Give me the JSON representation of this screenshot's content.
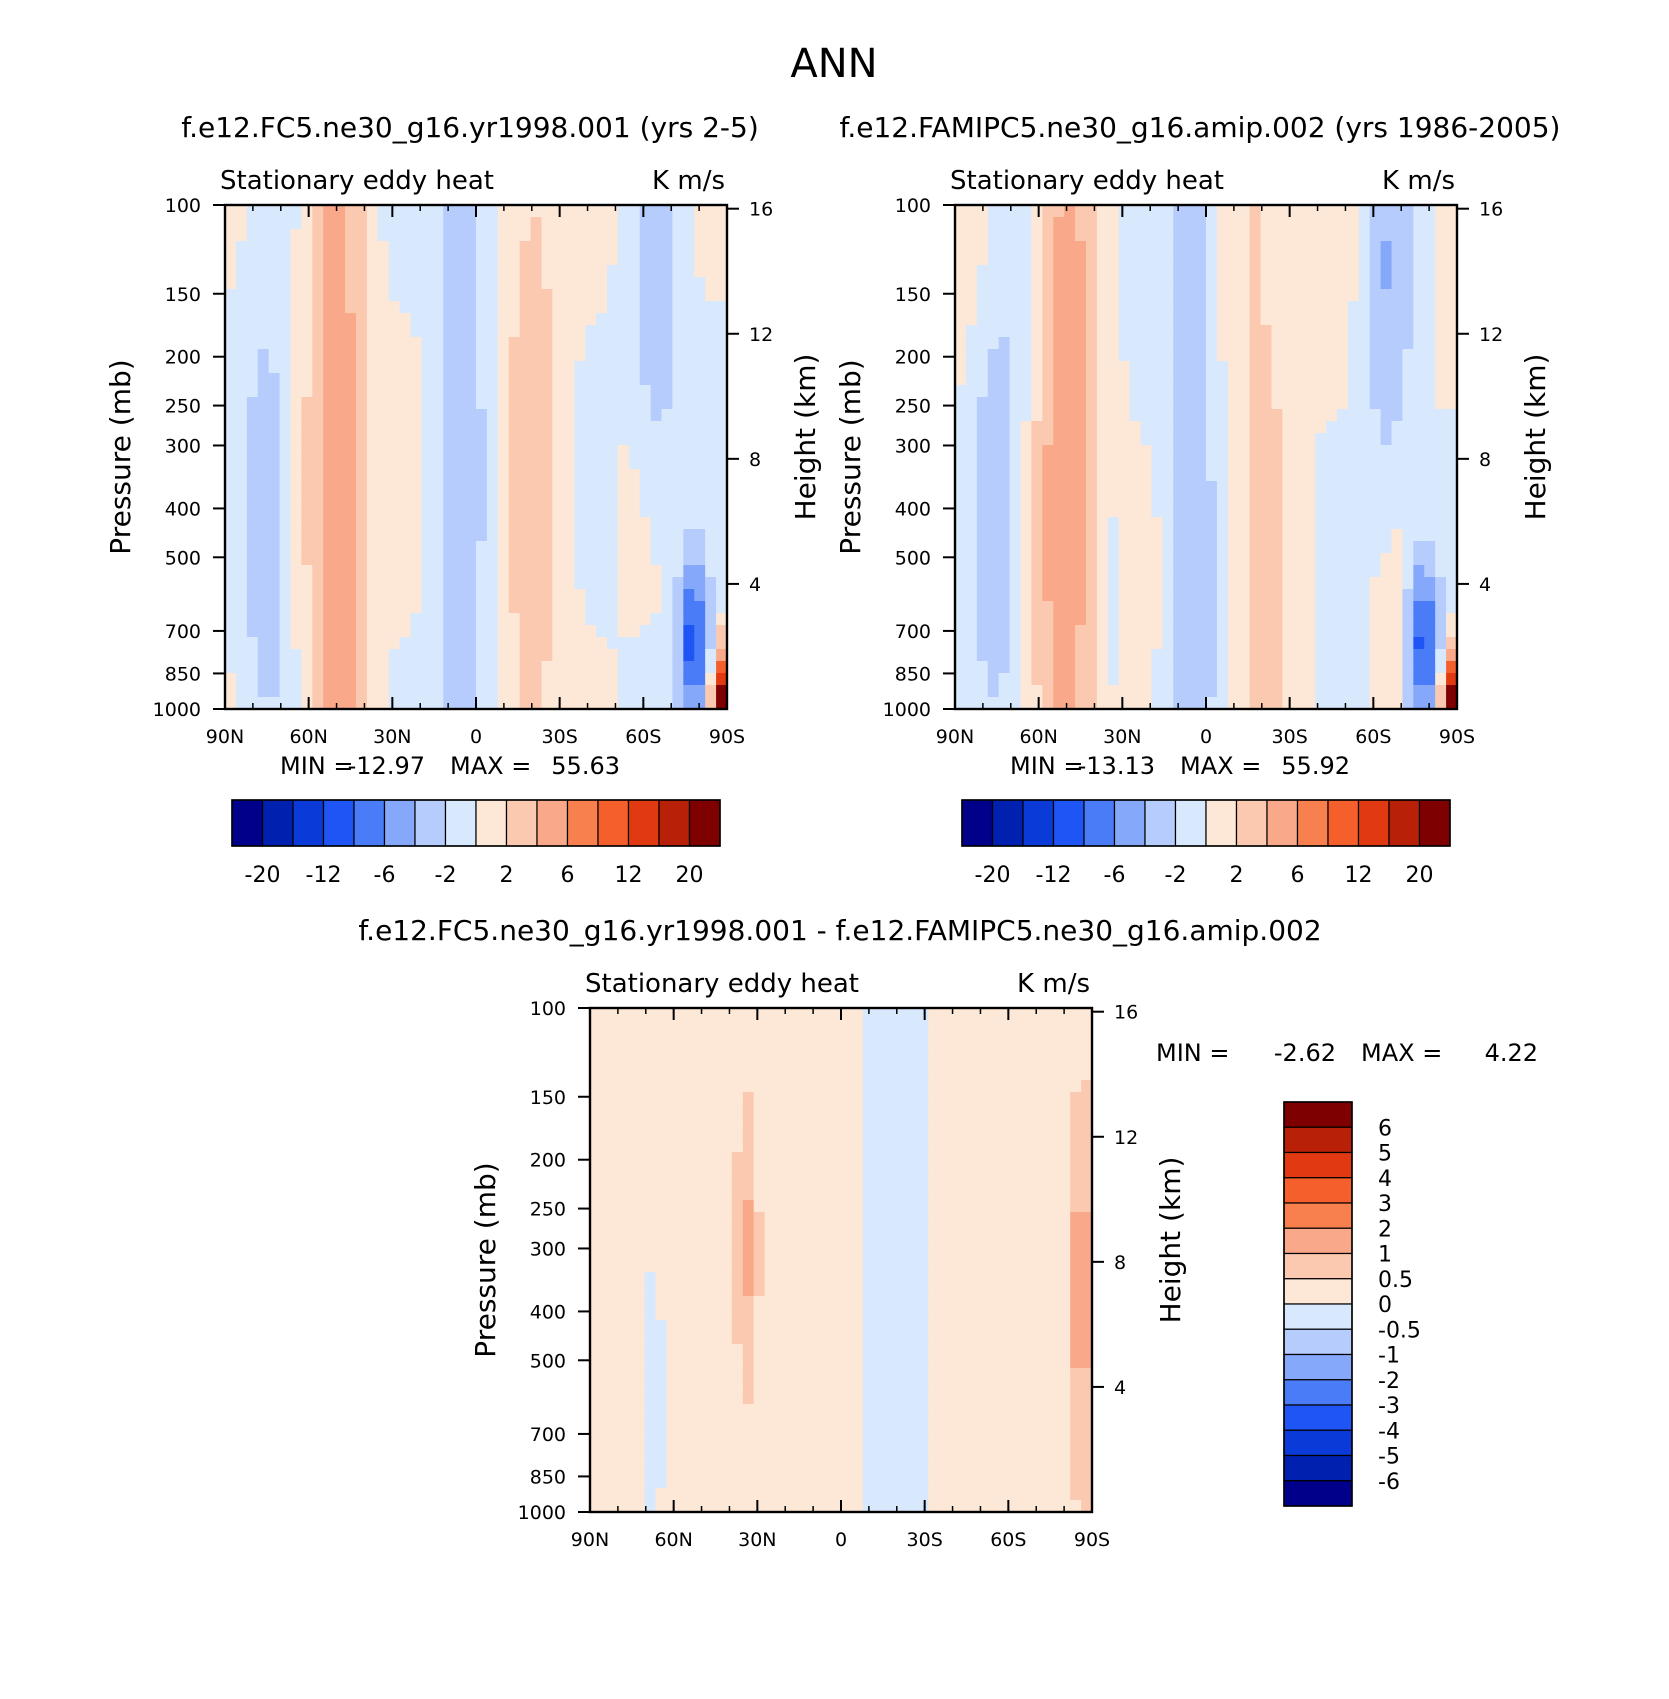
{
  "page_title": "ANN",
  "colors": {
    "blue_7": "#00008b",
    "blue_6": "#0020b0",
    "blue_5": "#0a3ad8",
    "blue_4": "#1f55f5",
    "blue_3": "#4a7cf8",
    "blue_2": "#86a8fb",
    "blue_1": "#b5ccfd",
    "blue_0": "#d9e9fd",
    "red_0": "#fde8d7",
    "red_1": "#fbc9b0",
    "red_2": "#f9a98a",
    "red_3": "#f8804f",
    "red_4": "#f45f2c",
    "red_5": "#e13a12",
    "red_6": "#b82008",
    "red_7": "#7f0000"
  },
  "chart_data": [
    {
      "type": "heatmap",
      "panel": "top-left",
      "title": "f.e12.FC5.ne30_g16.yr1998.001 (yrs 2-5)",
      "left_label": "Stationary eddy heat",
      "right_label": "K m/s",
      "ylabel": "Pressure (mb)",
      "y2label": "Height (km)",
      "xlabel": "",
      "xlim": [
        90,
        -90
      ],
      "x_ticks": [
        "90N",
        "60N",
        "30N",
        "0",
        "30S",
        "60S",
        "90S"
      ],
      "pressure_ticks": [
        "100",
        "150",
        "200",
        "250",
        "300",
        "400",
        "500",
        "700",
        "850",
        "1000"
      ],
      "height_ticks": [
        "16",
        "12",
        "8",
        "4"
      ],
      "min_label": "MIN =",
      "min_value": "-12.97",
      "max_label": "MAX =",
      "max_value": "55.63",
      "colorbar": {
        "orientation": "horizontal",
        "labels": [
          "-20",
          "-12",
          "-6",
          "-2",
          "2",
          "6",
          "12",
          "20"
        ]
      }
    },
    {
      "type": "heatmap",
      "panel": "top-right",
      "title": "f.e12.FAMIPC5.ne30_g16.amip.002 (yrs 1986-2005)",
      "left_label": "Stationary eddy heat",
      "right_label": "K m/s",
      "ylabel": "Pressure (mb)",
      "y2label": "Height (km)",
      "xlabel": "",
      "xlim": [
        90,
        -90
      ],
      "x_ticks": [
        "90N",
        "60N",
        "30N",
        "0",
        "30S",
        "60S",
        "90S"
      ],
      "pressure_ticks": [
        "100",
        "150",
        "200",
        "250",
        "300",
        "400",
        "500",
        "700",
        "850",
        "1000"
      ],
      "height_ticks": [
        "16",
        "12",
        "8",
        "4"
      ],
      "min_label": "MIN =",
      "min_value": "-13.13",
      "max_label": "MAX =",
      "max_value": "55.92",
      "colorbar": {
        "orientation": "horizontal",
        "labels": [
          "-20",
          "-12",
          "-6",
          "-2",
          "2",
          "6",
          "12",
          "20"
        ]
      }
    },
    {
      "type": "heatmap",
      "panel": "bottom",
      "title": "f.e12.FC5.ne30_g16.yr1998.001 - f.e12.FAMIPC5.ne30_g16.amip.002",
      "left_label": "Stationary eddy heat",
      "right_label": "K m/s",
      "ylabel": "Pressure (mb)",
      "y2label": "Height (km)",
      "xlabel": "",
      "xlim": [
        90,
        -90
      ],
      "x_ticks": [
        "90N",
        "60N",
        "30N",
        "0",
        "30S",
        "60S",
        "90S"
      ],
      "pressure_ticks": [
        "100",
        "150",
        "200",
        "250",
        "300",
        "400",
        "500",
        "700",
        "850",
        "1000"
      ],
      "height_ticks": [
        "16",
        "12",
        "8",
        "4"
      ],
      "min_label": "MIN =",
      "min_value": "-2.62",
      "max_label": "MAX =",
      "max_value": "4.22",
      "colorbar": {
        "orientation": "vertical",
        "labels": [
          "6",
          "5",
          "4",
          "3",
          "2",
          "1",
          "0.5",
          "0",
          "-0.5",
          "-1",
          "-2",
          "-3",
          "-4",
          "-5",
          "-6"
        ]
      }
    }
  ]
}
